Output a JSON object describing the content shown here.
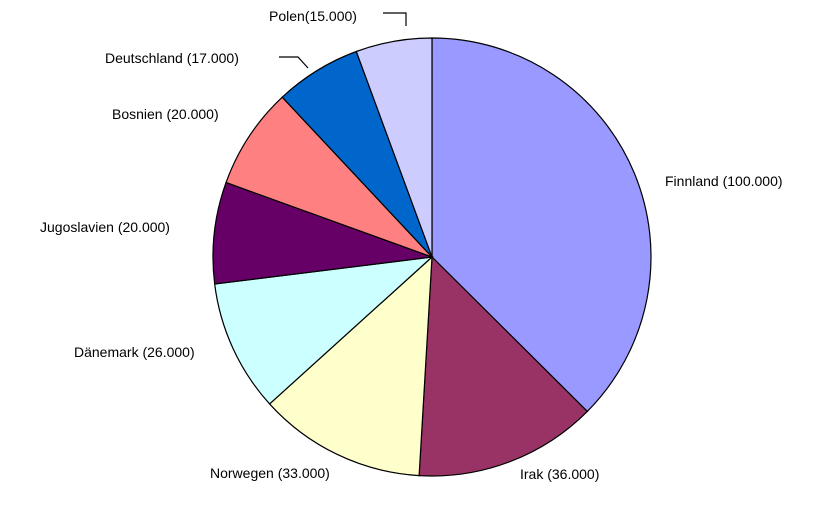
{
  "chart_data": {
    "type": "pie",
    "title": "",
    "categories": [
      "Finnland",
      "Irak",
      "Norwegen",
      "Dänemark",
      "Jugoslavien",
      "Bosnien",
      "Deutschland",
      "Polen"
    ],
    "values": [
      100000,
      36000,
      33000,
      26000,
      20000,
      20000,
      17000,
      15000
    ],
    "labels": [
      "Finnland (100.000)",
      "Irak (36.000)",
      "Norwegen (33.000)",
      "Dänemark (26.000)",
      "Jugoslavien (20.000)",
      "Bosnien (20.000)",
      "Deutschland (17.000)",
      "Polen(15.000)"
    ],
    "colors": [
      "#9999ff",
      "#993366",
      "#ffffcc",
      "#ccffff",
      "#660066",
      "#ff8080",
      "#0066cc",
      "#ccccff"
    ],
    "start_angle": "12 o'clock",
    "direction": "clockwise",
    "legend": "none"
  }
}
